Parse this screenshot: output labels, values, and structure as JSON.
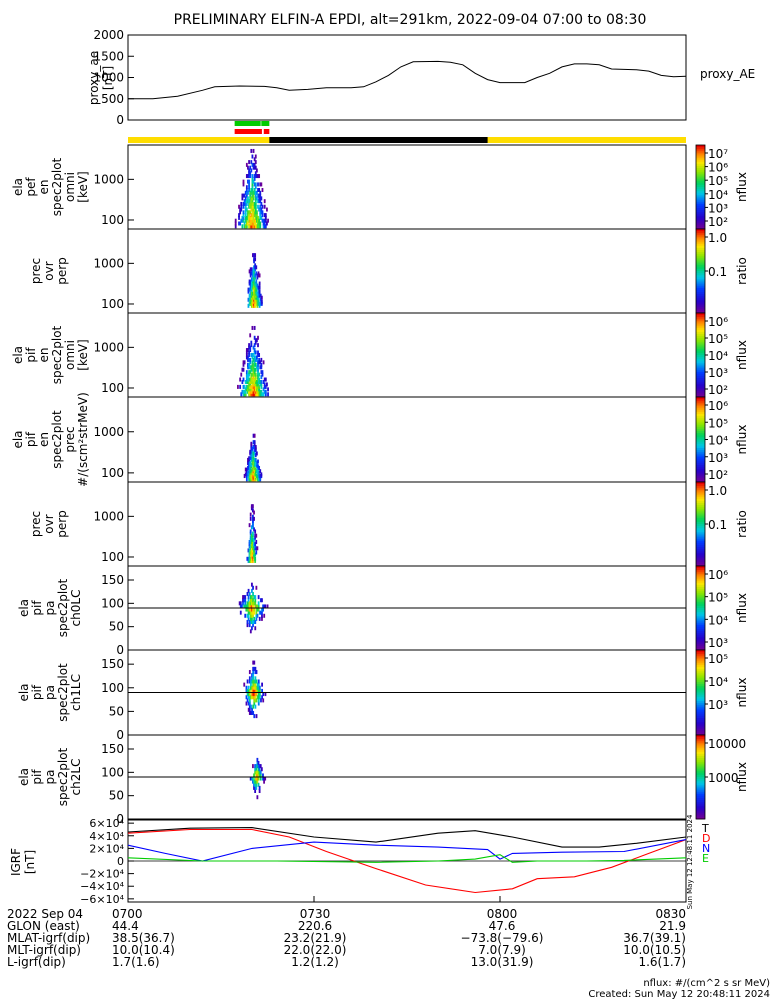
{
  "chart_data": {
    "type": "spectrogram-stack",
    "title": "PRELIMINARY ELFIN-A EPDI, alt=291km, 2022-09-04 07:00 to 08:30",
    "time_axis": {
      "tick_labels": [
        "0700",
        "0730",
        "0800",
        "0830"
      ],
      "tick_minutes": [
        0,
        30,
        60,
        90
      ],
      "range_minutes": [
        0,
        90
      ]
    },
    "ae_panel": {
      "ylabel": [
        "proxy_ae",
        "[nT]"
      ],
      "series_label": "proxy_AE",
      "ylim": [
        0,
        2000
      ],
      "yticks": [
        "2000",
        "1500",
        "1000",
        "500",
        "0"
      ],
      "points": [
        [
          0,
          500
        ],
        [
          4,
          500
        ],
        [
          8,
          560
        ],
        [
          12,
          700
        ],
        [
          14,
          780
        ],
        [
          18,
          800
        ],
        [
          22,
          790
        ],
        [
          24,
          760
        ],
        [
          26,
          700
        ],
        [
          29,
          720
        ],
        [
          32,
          760
        ],
        [
          36,
          760
        ],
        [
          38,
          780
        ],
        [
          40,
          900
        ],
        [
          42,
          1050
        ],
        [
          44,
          1250
        ],
        [
          46,
          1370
        ],
        [
          50,
          1380
        ],
        [
          52,
          1360
        ],
        [
          54,
          1300
        ],
        [
          56,
          1100
        ],
        [
          58,
          950
        ],
        [
          60,
          880
        ],
        [
          62,
          880
        ],
        [
          64,
          880
        ],
        [
          66,
          1000
        ],
        [
          68,
          1100
        ],
        [
          70,
          1250
        ],
        [
          72,
          1320
        ],
        [
          74,
          1320
        ],
        [
          76,
          1300
        ],
        [
          78,
          1200
        ],
        [
          80,
          1190
        ],
        [
          82,
          1180
        ],
        [
          84,
          1150
        ],
        [
          86,
          1050
        ],
        [
          88,
          1020
        ],
        [
          90,
          1030
        ]
      ]
    },
    "status_bar": {
      "base_color": "#ffdd00",
      "segments": [
        {
          "start": 22.8,
          "end": 58.0,
          "color": "#000000",
          "row": 0
        },
        {
          "start": 17.2,
          "end": 21.4,
          "color": "#00cc00",
          "row": 1
        },
        {
          "start": 21.5,
          "end": 22.8,
          "color": "#00cc00",
          "row": 1
        },
        {
          "start": 17.2,
          "end": 21.6,
          "color": "#ff0000",
          "row": 2
        },
        {
          "start": 21.9,
          "end": 22.8,
          "color": "#ff0000",
          "row": 2
        }
      ]
    },
    "spec_panels": [
      {
        "ylabel": [
          "ela",
          "pef",
          "en",
          "spec2plot",
          "omni",
          "[keV]"
        ],
        "yscale": "log",
        "ylim": [
          60,
          7000
        ],
        "yticks": [
          "1000",
          "100"
        ],
        "cbar_labels": [
          "10⁷",
          "10⁶",
          "10⁵",
          "10⁴",
          "10³",
          "10²"
        ],
        "cbar_units": "nflux",
        "cmap": "rainbow",
        "blob": {
          "t0": 16.6,
          "t1": 22.7,
          "peak": 20.0,
          "peak_y": 70,
          "top_y": 5000,
          "width_at_peak": 2.8
        }
      },
      {
        "ylabel": [
          "prec",
          "ovr",
          "perp"
        ],
        "yscale": "log",
        "ylim": [
          60,
          7000
        ],
        "yticks": [
          "1000",
          "100"
        ],
        "cbar_labels": [
          "1.0",
          "0.1"
        ],
        "cbar_units": "ratio",
        "cmap": "rainbow",
        "blob": {
          "t0": 19.2,
          "t1": 22.8,
          "peak": 20.3,
          "peak_y": 90,
          "top_y": 2000,
          "width_at_peak": 1.6
        }
      },
      {
        "ylabel": [
          "ela",
          "pif",
          "en",
          "spec2plot",
          "omni",
          "[keV]"
        ],
        "yscale": "log",
        "ylim": [
          60,
          7000
        ],
        "yticks": [
          "1000",
          "100"
        ],
        "cbar_labels": [
          "10⁶",
          "10⁵",
          "10⁴",
          "10³",
          "10²"
        ],
        "cbar_units": "nflux",
        "cmap": "rainbow",
        "blob": {
          "t0": 17.5,
          "t1": 22.7,
          "peak": 20.2,
          "peak_y": 70,
          "top_y": 3000,
          "width_at_peak": 2.8
        }
      },
      {
        "ylabel": [
          "ela",
          "pif",
          "en",
          "spec2plot",
          "prec",
          "#/(scm²strMeV)"
        ],
        "yscale": "log",
        "ylim": [
          60,
          7000
        ],
        "yticks": [
          "1000",
          "100"
        ],
        "cbar_labels": [
          "10⁶",
          "10⁵",
          "10⁴",
          "10³",
          "10²"
        ],
        "cbar_units": "nflux",
        "cmap": "rainbow",
        "blob": {
          "t0": 18.4,
          "t1": 22.0,
          "peak": 20.2,
          "peak_y": 70,
          "top_y": 800,
          "width_at_peak": 1.6
        }
      },
      {
        "ylabel": [
          "prec",
          "ovr",
          "perp"
        ],
        "yscale": "log",
        "ylim": [
          60,
          7000
        ],
        "yticks": [
          "1000",
          "100"
        ],
        "cbar_labels": [
          "1.0",
          "0.1"
        ],
        "cbar_units": "ratio",
        "cmap": "rainbow",
        "blob": {
          "t0": 19.2,
          "t1": 21.0,
          "peak": 20.0,
          "peak_y": 80,
          "top_y": 2000,
          "width_at_peak": 1.0
        }
      },
      {
        "ylabel": [
          "ela",
          "pif",
          "pa",
          "spec2plot",
          "ch0LC"
        ],
        "yscale": "linear",
        "ylim": [
          0,
          180
        ],
        "yticks": [
          "150",
          "100",
          "50",
          "0"
        ],
        "hline": 90,
        "cbar_labels": [
          "10⁶",
          "10⁵",
          "10⁴",
          "10³"
        ],
        "cbar_units": "nflux",
        "cmap": "rainbow",
        "blob": {
          "t0": 17.6,
          "t1": 22.8,
          "peak": 20.0,
          "peak_y": 90,
          "top_y": 140,
          "width_at_peak": 2.6
        }
      },
      {
        "ylabel": [
          "ela",
          "pif",
          "pa",
          "spec2plot",
          "ch1LC"
        ],
        "yscale": "linear",
        "ylim": [
          0,
          180
        ],
        "yticks": [
          "150",
          "100",
          "50",
          "0"
        ],
        "hline": 90,
        "cbar_labels": [
          "10⁵",
          "10⁴",
          "10³"
        ],
        "cbar_units": "nflux",
        "cmap": "rainbow",
        "blob": {
          "t0": 18.7,
          "t1": 22.4,
          "peak": 20.3,
          "peak_y": 90,
          "top_y": 150,
          "width_at_peak": 2.0
        }
      },
      {
        "ylabel": [
          "ela",
          "pif",
          "pa",
          "spec2plot",
          "ch2LC"
        ],
        "yscale": "linear",
        "ylim": [
          0,
          180
        ],
        "yticks": [
          "150",
          "100",
          "50",
          "0"
        ],
        "hline": 90,
        "cbar_labels": [
          "10000",
          "1000"
        ],
        "cbar_units": "nflux",
        "cmap": "rainbow",
        "blob": {
          "t0": 19.2,
          "t1": 22.1,
          "peak": 20.8,
          "peak_y": 90,
          "top_y": 130,
          "width_at_peak": 1.4
        }
      }
    ],
    "igrf_panel": {
      "ylabel": [
        "IGRF",
        "[nT]"
      ],
      "ylim": [
        -65000,
        65000
      ],
      "yticks": [
        "6×10⁴",
        "4×10⁴",
        "2×10⁴",
        "0",
        "−2×10⁴",
        "−4×10⁴",
        "−6×10⁴"
      ],
      "ytick_values": [
        60000,
        40000,
        20000,
        0,
        -20000,
        -40000,
        -60000
      ],
      "legend": [
        {
          "label": "T",
          "color": "#000000"
        },
        {
          "label": "D",
          "color": "#ff0000"
        },
        {
          "label": "N",
          "color": "#0000ff"
        },
        {
          "label": "E",
          "color": "#00cc00"
        }
      ],
      "series": [
        {
          "name": "T",
          "color": "#000000",
          "points": [
            [
              0,
              46000
            ],
            [
              10,
              52000
            ],
            [
              20,
              53000
            ],
            [
              30,
              38000
            ],
            [
              40,
              30000
            ],
            [
              50,
              44000
            ],
            [
              56,
              48000
            ],
            [
              62,
              38000
            ],
            [
              70,
              22000
            ],
            [
              76,
              22000
            ],
            [
              82,
              28000
            ],
            [
              90,
              38000
            ]
          ]
        },
        {
          "name": "D",
          "color": "#ff0000",
          "points": [
            [
              0,
              44000
            ],
            [
              10,
              50000
            ],
            [
              20,
              50000
            ],
            [
              26,
              38000
            ],
            [
              32,
              15000
            ],
            [
              40,
              -12000
            ],
            [
              48,
              -38000
            ],
            [
              56,
              -50000
            ],
            [
              62,
              -44000
            ],
            [
              66,
              -28000
            ],
            [
              72,
              -25000
            ],
            [
              78,
              -10000
            ],
            [
              84,
              12000
            ],
            [
              90,
              34000
            ]
          ]
        },
        {
          "name": "N",
          "color": "#0000ff",
          "points": [
            [
              0,
              25000
            ],
            [
              6,
              12000
            ],
            [
              12,
              0
            ],
            [
              20,
              20000
            ],
            [
              30,
              30000
            ],
            [
              40,
              25000
            ],
            [
              50,
              22000
            ],
            [
              58,
              18000
            ],
            [
              60,
              3000
            ],
            [
              62,
              12000
            ],
            [
              70,
              14000
            ],
            [
              80,
              15000
            ],
            [
              90,
              34000
            ]
          ]
        },
        {
          "name": "E",
          "color": "#00cc00",
          "points": [
            [
              0,
              5000
            ],
            [
              12,
              0
            ],
            [
              24,
              0
            ],
            [
              40,
              -2000
            ],
            [
              50,
              0
            ],
            [
              56,
              3000
            ],
            [
              60,
              10000
            ],
            [
              62,
              -2000
            ],
            [
              66,
              0
            ],
            [
              74,
              0
            ],
            [
              80,
              1000
            ],
            [
              90,
              5000
            ]
          ]
        }
      ],
      "side_text": "Sun May 12 12:48:11 2024"
    },
    "ephemeris": [
      {
        "label": "2022 Sep 04",
        "values": [
          "0700",
          "0730",
          "0800",
          "0830"
        ]
      },
      {
        "label": "GLON (east)",
        "values": [
          "44.4",
          "220.6",
          "47.6",
          "21.9"
        ]
      },
      {
        "label": "MLAT-igrf(dip)",
        "values": [
          "38.5(36.7)",
          "23.2(21.9)",
          "−73.8(−79.6)",
          "36.7(39.1)"
        ]
      },
      {
        "label": "MLT-igrf(dip)",
        "values": [
          "10.0(10.4)",
          "22.0(22.0)",
          "7.0(7.9)",
          "10.0(10.5)"
        ]
      },
      {
        "label": "L-igrf(dip)",
        "values": [
          "1.7(1.6)",
          "1.2(1.2)",
          "13.0(31.9)",
          "1.6(1.7)"
        ]
      }
    ],
    "footer": {
      "units_note": "nflux: #/(cm^2 s sr MeV)",
      "created": "Created: Sun May 12 20:48:11 2024"
    }
  }
}
